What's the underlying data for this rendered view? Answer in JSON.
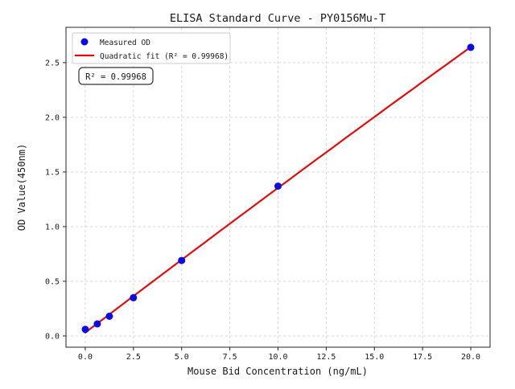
{
  "figure": {
    "background": "#ffffff"
  },
  "chart_data": {
    "type": "scatter",
    "title": "ELISA Standard Curve - PY0156Mu-T",
    "xlabel": "Mouse Bid Concentration (ng/mL)",
    "ylabel": "OD Value(450nm)",
    "xlim": [
      -1,
      21
    ],
    "ylim": [
      -0.103,
      2.823
    ],
    "grid": true,
    "grid_style": "dashed",
    "xticks": [
      {
        "v": 0,
        "label": "0.0"
      },
      {
        "v": 2.5,
        "label": "2.5"
      },
      {
        "v": 5,
        "label": "5.0"
      },
      {
        "v": 7.5,
        "label": "7.5"
      },
      {
        "v": 10,
        "label": "10.0"
      },
      {
        "v": 12.5,
        "label": "12.5"
      },
      {
        "v": 15,
        "label": "15.0"
      },
      {
        "v": 17.5,
        "label": "17.5"
      },
      {
        "v": 20,
        "label": "20.0"
      }
    ],
    "yticks": [
      {
        "v": 0,
        "label": "0.0"
      },
      {
        "v": 0.5,
        "label": "0.5"
      },
      {
        "v": 1,
        "label": "1.0"
      },
      {
        "v": 1.5,
        "label": "1.5"
      },
      {
        "v": 2,
        "label": "2.0"
      },
      {
        "v": 2.5,
        "label": "2.5"
      }
    ],
    "points": [
      {
        "x": 0,
        "y": 0.06
      },
      {
        "x": 0.625,
        "y": 0.11
      },
      {
        "x": 1.25,
        "y": 0.18
      },
      {
        "x": 2.5,
        "y": 0.35
      },
      {
        "x": 5,
        "y": 0.69
      },
      {
        "x": 10,
        "y": 1.37
      },
      {
        "x": 20,
        "y": 2.64
      }
    ],
    "fit": {
      "kind": "quadratic",
      "x_range": [
        0,
        20
      ],
      "r_squared": "0.99968"
    },
    "legend": {
      "position": "upper-left",
      "entries": [
        {
          "label": "Measured OD",
          "marker": "dot"
        },
        {
          "label": "Quadratic fit (R² = 0.99968)",
          "marker": "line"
        }
      ]
    },
    "annotation": "R² = 0.99968",
    "colors": {
      "point": "#0b0bE8",
      "fit_line": "#e60b0b",
      "grid": "#d9d9d9",
      "spine": "#262626",
      "legend_border": "#cccccc",
      "annotation_border": "#333333"
    }
  }
}
